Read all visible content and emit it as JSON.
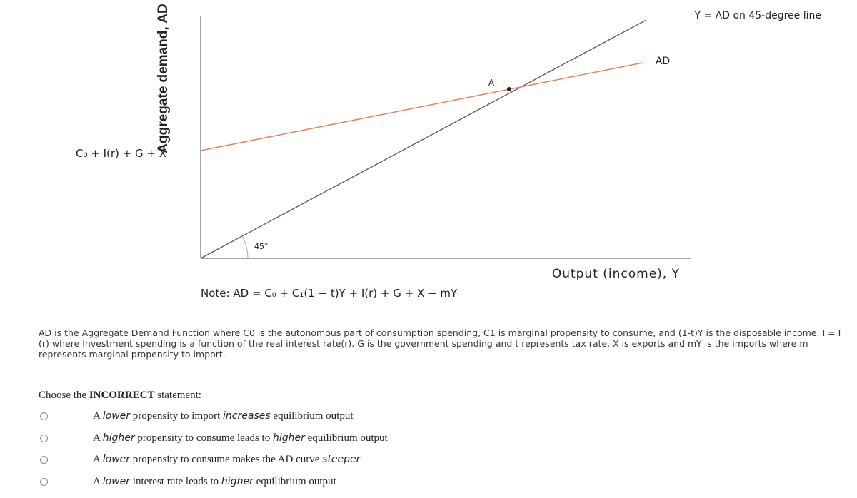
{
  "diagram": {
    "y_axis_label": "Aggregate demand, AD",
    "intercept_label": "C₀ + I(r) + G + X",
    "line_45_label": "Y = AD on 45-degree line",
    "ad_label": "AD",
    "point_label": "A",
    "angle_label": "45°",
    "x_axis_label": "Output (income), Y",
    "note": "Note: AD = C₀ + C₁(1 − t)Y + I(r) + G + X − mY"
  },
  "description": "AD is the Aggregate Demand Function where C0 is the autonomous part of consumption spending,  C1 is marginal propensity to consume, and  (1-t)Y is the disposable income. I = I (r) where Investment spending is a function of the real interest rate(r). G is the government spending and t represents tax rate. X is exports and mY is the imports where m represents marginal propensity to import.",
  "question": {
    "prompt_start": "Choose the",
    "prompt_emphasis": "INCORRECT",
    "prompt_end": "statement:",
    "options": [
      [
        "A ",
        "lower",
        " propensity to import ",
        "increases",
        " equilibrium output"
      ],
      [
        "A ",
        "higher",
        " propensity to consume leads to ",
        "higher",
        " equilibrium output"
      ],
      [
        "A ",
        "lower",
        " propensity to consume makes the AD curve ",
        "steeper"
      ],
      [
        "A ",
        "lower",
        " interest rate leads to ",
        "higher",
        " equilibrium output"
      ]
    ]
  }
}
